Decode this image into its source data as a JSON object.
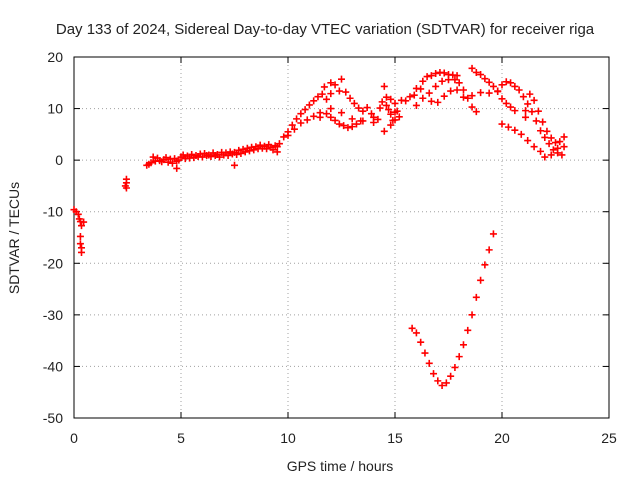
{
  "chart_data": {
    "type": "scatter",
    "title": "Day 133 of 2024, Sidereal Day-to-day VTEC variation (SDTVAR) for receiver riga",
    "xlabel": "GPS time / hours",
    "ylabel": "SDTVAR / TECUs",
    "xlim": [
      0,
      25
    ],
    "ylim": [
      -50,
      20
    ],
    "xticks": [
      0,
      5,
      10,
      15,
      20,
      25
    ],
    "yticks": [
      -50,
      -40,
      -30,
      -20,
      -10,
      0,
      10,
      20
    ],
    "grid": true,
    "legend": "none",
    "marker": "+",
    "color": "#ff0000",
    "series": [
      {
        "values": [
          [
            0.0,
            -9.6
          ],
          [
            0.1,
            -10.0
          ],
          [
            0.2,
            -10.5
          ],
          [
            0.25,
            -11.4
          ],
          [
            0.3,
            -11.9
          ],
          [
            0.35,
            -12.7
          ],
          [
            0.45,
            -12.0
          ],
          [
            0.3,
            -14.8
          ],
          [
            0.3,
            -16.2
          ],
          [
            0.35,
            -17.0
          ],
          [
            0.35,
            -17.9
          ],
          [
            2.45,
            -3.7
          ],
          [
            2.45,
            -4.4
          ],
          [
            2.4,
            -5.0
          ],
          [
            2.45,
            -5.4
          ],
          [
            3.4,
            -1.0
          ],
          [
            3.5,
            -0.8
          ],
          [
            3.6,
            -0.5
          ],
          [
            3.7,
            0.6
          ],
          [
            3.8,
            -0.2
          ],
          [
            3.9,
            0.4
          ],
          [
            4.0,
            -0.1
          ],
          [
            4.1,
            -0.3
          ],
          [
            4.2,
            0.1
          ],
          [
            4.3,
            0.5
          ],
          [
            4.4,
            -0.4
          ],
          [
            4.5,
            0.2
          ],
          [
            4.6,
            -0.6
          ],
          [
            4.7,
            0.3
          ],
          [
            4.8,
            -0.2
          ],
          [
            4.9,
            0.0
          ],
          [
            5.0,
            0.6
          ],
          [
            5.1,
            1.0
          ],
          [
            5.2,
            0.3
          ],
          [
            5.3,
            0.8
          ],
          [
            5.4,
            0.4
          ],
          [
            5.5,
            1.1
          ],
          [
            5.6,
            0.5
          ],
          [
            5.7,
            0.9
          ],
          [
            5.8,
            0.7
          ],
          [
            5.9,
            1.2
          ],
          [
            6.0,
            0.6
          ],
          [
            6.1,
            1.3
          ],
          [
            6.2,
            0.9
          ],
          [
            6.3,
            1.0
          ],
          [
            6.4,
            0.7
          ],
          [
            6.5,
            1.4
          ],
          [
            6.6,
            0.9
          ],
          [
            6.7,
            1.1
          ],
          [
            6.8,
            0.6
          ],
          [
            6.9,
            1.5
          ],
          [
            7.0,
            1.0
          ],
          [
            7.1,
            1.4
          ],
          [
            7.2,
            0.9
          ],
          [
            7.3,
            1.6
          ],
          [
            7.4,
            1.2
          ],
          [
            7.5,
            1.5
          ],
          [
            7.6,
            1.1
          ],
          [
            7.7,
            1.9
          ],
          [
            7.8,
            1.3
          ],
          [
            7.9,
            2.1
          ],
          [
            8.0,
            1.6
          ],
          [
            8.1,
            2.3
          ],
          [
            8.2,
            1.8
          ],
          [
            8.3,
            2.5
          ],
          [
            8.4,
            2.0
          ],
          [
            8.5,
            2.6
          ],
          [
            8.6,
            2.2
          ],
          [
            8.7,
            2.9
          ],
          [
            8.8,
            2.3
          ],
          [
            8.9,
            2.7
          ],
          [
            9.0,
            2.2
          ],
          [
            9.1,
            3.0
          ],
          [
            9.2,
            2.5
          ],
          [
            9.3,
            2.0
          ],
          [
            9.4,
            2.8
          ],
          [
            9.5,
            2.6
          ],
          [
            4.8,
            -1.6
          ],
          [
            7.5,
            -1.0
          ],
          [
            9.5,
            1.6
          ],
          [
            9.6,
            3.2
          ],
          [
            9.8,
            4.5
          ],
          [
            10.0,
            5.5
          ],
          [
            10.2,
            6.8
          ],
          [
            10.4,
            8.0
          ],
          [
            10.6,
            9.0
          ],
          [
            10.8,
            9.8
          ],
          [
            11.0,
            10.7
          ],
          [
            11.2,
            11.5
          ],
          [
            11.4,
            12.3
          ],
          [
            11.6,
            12.8
          ],
          [
            11.8,
            11.8
          ],
          [
            12.0,
            12.9
          ],
          [
            10.0,
            4.8
          ],
          [
            10.3,
            6.0
          ],
          [
            10.6,
            7.2
          ],
          [
            10.9,
            7.8
          ],
          [
            11.2,
            8.5
          ],
          [
            11.5,
            9.2
          ],
          [
            11.8,
            9.0
          ],
          [
            12.0,
            8.3
          ],
          [
            12.2,
            7.7
          ],
          [
            12.4,
            7.0
          ],
          [
            12.6,
            6.7
          ],
          [
            12.8,
            6.3
          ],
          [
            13.0,
            6.5
          ],
          [
            13.2,
            7.0
          ],
          [
            13.4,
            7.6
          ],
          [
            11.7,
            14.2
          ],
          [
            12.0,
            15.0
          ],
          [
            12.2,
            14.6
          ],
          [
            12.4,
            13.4
          ],
          [
            12.5,
            15.7
          ],
          [
            12.7,
            13.2
          ],
          [
            12.9,
            12.0
          ],
          [
            13.1,
            11.0
          ],
          [
            13.3,
            10.1
          ],
          [
            13.5,
            9.5
          ],
          [
            13.7,
            10.2
          ],
          [
            13.9,
            9.0
          ],
          [
            14.0,
            8.3
          ],
          [
            14.2,
            7.9
          ],
          [
            14.3,
            10.1
          ],
          [
            14.4,
            11.3
          ],
          [
            14.6,
            10.6
          ],
          [
            14.8,
            11.8
          ],
          [
            15.0,
            11.0
          ],
          [
            15.1,
            9.5
          ],
          [
            15.2,
            8.4
          ],
          [
            11.5,
            8.3
          ],
          [
            12.0,
            10.0
          ],
          [
            12.5,
            9.2
          ],
          [
            13.0,
            8.0
          ],
          [
            13.5,
            7.6
          ],
          [
            14.0,
            7.3
          ],
          [
            14.5,
            5.6
          ],
          [
            14.8,
            8.9
          ],
          [
            15.0,
            7.8
          ],
          [
            14.5,
            14.3
          ],
          [
            14.6,
            12.2
          ],
          [
            14.7,
            9.8
          ],
          [
            14.8,
            6.8
          ],
          [
            14.9,
            7.7
          ],
          [
            15.0,
            9.3
          ],
          [
            15.3,
            11.6
          ],
          [
            15.5,
            11.5
          ],
          [
            15.7,
            12.3
          ],
          [
            15.9,
            12.6
          ],
          [
            16.0,
            13.9
          ],
          [
            16.2,
            13.8
          ],
          [
            16.3,
            15.3
          ],
          [
            16.5,
            16.2
          ],
          [
            16.7,
            16.4
          ],
          [
            16.9,
            16.8
          ],
          [
            17.1,
            17.0
          ],
          [
            17.3,
            16.9
          ],
          [
            17.5,
            16.6
          ],
          [
            17.7,
            16.5
          ],
          [
            17.9,
            16.4
          ],
          [
            16.0,
            10.6
          ],
          [
            16.3,
            12.0
          ],
          [
            16.6,
            13.0
          ],
          [
            16.9,
            14.3
          ],
          [
            17.2,
            15.3
          ],
          [
            17.5,
            15.6
          ],
          [
            17.8,
            15.6
          ],
          [
            18.0,
            15.0
          ],
          [
            18.2,
            13.6
          ],
          [
            18.4,
            12.0
          ],
          [
            18.6,
            10.3
          ],
          [
            18.8,
            9.4
          ],
          [
            16.7,
            11.4
          ],
          [
            17.0,
            11.2
          ],
          [
            17.3,
            12.4
          ],
          [
            17.6,
            13.4
          ],
          [
            17.9,
            13.6
          ],
          [
            18.6,
            17.8
          ],
          [
            18.8,
            17.0
          ],
          [
            19.0,
            16.6
          ],
          [
            19.2,
            15.8
          ],
          [
            19.4,
            15.1
          ],
          [
            19.6,
            14.3
          ],
          [
            19.8,
            13.4
          ],
          [
            20.0,
            11.9
          ],
          [
            20.2,
            11.0
          ],
          [
            20.4,
            10.3
          ],
          [
            20.6,
            9.6
          ],
          [
            18.2,
            12.2
          ],
          [
            18.6,
            12.5
          ],
          [
            19.0,
            13.1
          ],
          [
            19.4,
            13.0
          ],
          [
            19.8,
            13.3
          ],
          [
            20.0,
            14.6
          ],
          [
            20.2,
            15.2
          ],
          [
            20.4,
            15.0
          ],
          [
            20.6,
            14.3
          ],
          [
            20.8,
            13.6
          ],
          [
            21.0,
            12.3
          ],
          [
            21.2,
            10.9
          ],
          [
            21.4,
            9.4
          ],
          [
            21.6,
            7.6
          ],
          [
            21.8,
            5.7
          ],
          [
            22.0,
            4.4
          ],
          [
            22.2,
            3.2
          ],
          [
            22.4,
            2.0
          ],
          [
            22.6,
            1.4
          ],
          [
            22.8,
            1.0
          ],
          [
            20.0,
            7.0
          ],
          [
            20.3,
            6.4
          ],
          [
            20.6,
            5.8
          ],
          [
            20.9,
            5.0
          ],
          [
            21.2,
            3.8
          ],
          [
            21.5,
            2.6
          ],
          [
            21.8,
            1.7
          ],
          [
            22.0,
            0.6
          ],
          [
            22.3,
            1.0
          ],
          [
            22.6,
            2.3
          ],
          [
            21.1,
            9.6
          ],
          [
            21.1,
            8.3
          ],
          [
            21.3,
            12.8
          ],
          [
            21.5,
            11.6
          ],
          [
            21.7,
            9.5
          ],
          [
            21.9,
            7.4
          ],
          [
            22.1,
            5.6
          ],
          [
            22.3,
            4.3
          ],
          [
            22.5,
            3.4
          ],
          [
            22.7,
            3.6
          ],
          [
            22.9,
            4.5
          ],
          [
            22.9,
            2.6
          ],
          [
            15.8,
            -32.6
          ],
          [
            16.0,
            -33.5
          ],
          [
            16.2,
            -35.3
          ],
          [
            16.4,
            -37.4
          ],
          [
            16.6,
            -39.4
          ],
          [
            16.8,
            -41.4
          ],
          [
            17.0,
            -42.8
          ],
          [
            17.2,
            -43.7
          ],
          [
            17.4,
            -43.2
          ],
          [
            17.6,
            -41.9
          ],
          [
            17.8,
            -40.2
          ],
          [
            18.0,
            -38.1
          ],
          [
            18.2,
            -35.8
          ],
          [
            18.4,
            -33.0
          ],
          [
            18.6,
            -30.0
          ],
          [
            18.8,
            -26.6
          ],
          [
            19.0,
            -23.3
          ],
          [
            19.2,
            -20.3
          ],
          [
            19.4,
            -17.4
          ],
          [
            19.6,
            -14.3
          ]
        ]
      }
    ]
  }
}
